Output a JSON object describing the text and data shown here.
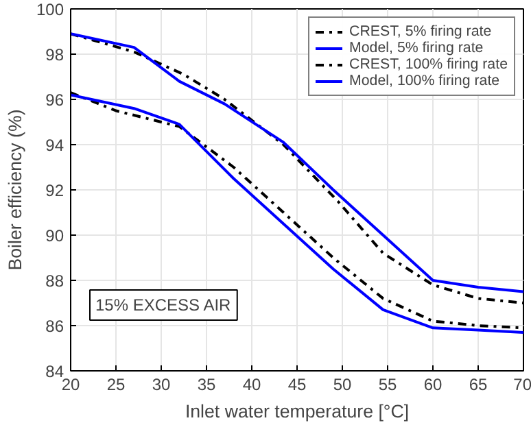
{
  "chart_data": {
    "type": "line",
    "xlabel": "Inlet water temperature [°C]",
    "ylabel": "Boiler efficiency (%)",
    "xlim": [
      20,
      70
    ],
    "ylim": [
      84,
      100
    ],
    "xticks": [
      20,
      25,
      30,
      35,
      40,
      45,
      50,
      55,
      60,
      65,
      70
    ],
    "yticks": [
      84,
      86,
      88,
      90,
      92,
      94,
      96,
      98,
      100
    ],
    "grid": true,
    "legend": "top right",
    "annotations": [
      "15% EXCESS AIR"
    ],
    "series": [
      {
        "name": "CREST, 5% firing rate",
        "color": "#000000",
        "line_style": "dashdot",
        "x": [
          20,
          27,
          32.5,
          37,
          43.5,
          49.5,
          54.5,
          60,
          65,
          70
        ],
        "values": [
          98.9,
          98.1,
          97.1,
          96.0,
          94.0,
          91.5,
          89.2,
          87.8,
          87.2,
          87.0
        ]
      },
      {
        "name": "Model, 5% firing rate",
        "color": "#0000ff",
        "line_style": "solid",
        "x": [
          20,
          27,
          32,
          37,
          43.5,
          49,
          54.5,
          60,
          65,
          70
        ],
        "values": [
          98.9,
          98.3,
          96.8,
          95.8,
          94.1,
          92.0,
          90.0,
          88.0,
          87.7,
          87.5
        ]
      },
      {
        "name": "CREST, 100% firing rate",
        "color": "#000000",
        "line_style": "dashdot",
        "x": [
          20,
          25,
          32,
          38,
          43.5,
          49,
          54.5,
          60,
          65,
          70
        ],
        "values": [
          96.3,
          95.5,
          94.8,
          93.0,
          91.0,
          89.0,
          87.2,
          86.2,
          86.0,
          85.9
        ]
      },
      {
        "name": "Model, 100% firing rate",
        "color": "#0000ff",
        "line_style": "solid",
        "x": [
          20,
          27,
          32,
          38,
          43.5,
          49,
          54.5,
          60,
          65,
          70
        ],
        "values": [
          96.2,
          95.6,
          94.9,
          92.5,
          90.5,
          88.5,
          86.7,
          85.9,
          85.8,
          85.7
        ]
      }
    ]
  }
}
